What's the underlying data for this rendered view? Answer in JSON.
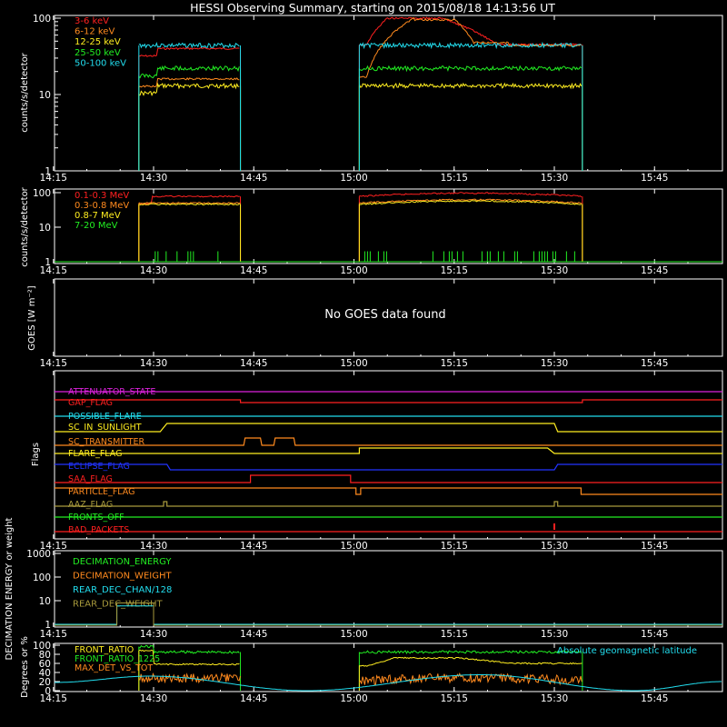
{
  "title": "HESSI Observing Summary, starting on 2015/08/18 14:13:56 UT",
  "x_ticks": [
    "14:15",
    "14:30",
    "14:45",
    "15:00",
    "15:15",
    "15:30",
    "15:45"
  ],
  "colors": {
    "red": "#ff2020",
    "orange": "#ff8a1e",
    "yellow": "#ffee20",
    "green": "#22ee22",
    "cyan": "#22ddee",
    "magenta": "#dd22dd",
    "blue": "#2233ff",
    "olive": "#a89a3c",
    "white": "#ffffff"
  },
  "chart_data": [
    {
      "id": "rate_low",
      "type": "line",
      "ylabel": "counts/s/detector",
      "yscale": "log",
      "yticks": [
        "1",
        "10",
        "100"
      ],
      "legend_placement": "top-left",
      "series": [
        {
          "name": "3-6 keV",
          "color": "red"
        },
        {
          "name": "6-12 keV",
          "color": "orange"
        },
        {
          "name": "12-25 keV",
          "color": "yellow"
        },
        {
          "name": "25-50 keV",
          "color": "green"
        },
        {
          "name": "50-100 keV",
          "color": "cyan"
        }
      ]
    },
    {
      "id": "rate_high",
      "type": "line",
      "ylabel": "counts/s/detector",
      "yscale": "log",
      "yticks": [
        "1",
        "10",
        "100"
      ],
      "legend_placement": "top-left",
      "series": [
        {
          "name": "0.1-0.3 MeV",
          "color": "red"
        },
        {
          "name": "0.3-0.8 MeV",
          "color": "orange"
        },
        {
          "name": "0.8-7 MeV",
          "color": "yellow"
        },
        {
          "name": "7-20 MeV",
          "color": "green"
        }
      ]
    },
    {
      "id": "goes",
      "type": "line",
      "ylabel": "GOES [W m⁻²]",
      "message": "No GOES data found"
    },
    {
      "id": "flags",
      "type": "line",
      "ylabel": "Flags",
      "series": [
        {
          "name": "ATTENUATOR_STATE",
          "color": "magenta"
        },
        {
          "name": "GAP_FLAG",
          "color": "red"
        },
        {
          "name": "POSSIBLE_FLARE",
          "color": "cyan"
        },
        {
          "name": "SC_IN_SUNLIGHT",
          "color": "yellow"
        },
        {
          "name": "SC_TRANSMITTER",
          "color": "orange"
        },
        {
          "name": "FLARE_FLAG",
          "color": "yellow"
        },
        {
          "name": "ECLIPSE_FLAG",
          "color": "blue"
        },
        {
          "name": "SAA_FLAG",
          "color": "red"
        },
        {
          "name": "PARTICLE_FLAG",
          "color": "orange"
        },
        {
          "name": "AAZ_FLAG",
          "color": "olive"
        },
        {
          "name": "FRONTS_OFF",
          "color": "green"
        },
        {
          "name": "BAD_PACKETS",
          "color": "red"
        }
      ]
    },
    {
      "id": "decimation",
      "type": "line",
      "ylabel": "DECIMATION ENERGY or weight",
      "yscale": "log",
      "yticks": [
        "1",
        "10",
        "100",
        "1000"
      ],
      "series": [
        {
          "name": "DECIMATION_ENERGY",
          "color": "green"
        },
        {
          "name": "DECIMATION_WEIGHT",
          "color": "orange"
        },
        {
          "name": "REAR_DEC_CHAN/128",
          "color": "cyan"
        },
        {
          "name": "REAR_DEC_WEIGHT",
          "color": "olive"
        }
      ]
    },
    {
      "id": "ratios",
      "type": "line",
      "ylabel": "Degrees or %",
      "yticks": [
        "0",
        "20",
        "40",
        "60",
        "80",
        "100"
      ],
      "series": [
        {
          "name": "FRONT_RATIO",
          "color": "yellow"
        },
        {
          "name": "FRONT_RATIO_1225",
          "color": "green"
        },
        {
          "name": "MAX_DET_VS_TOT",
          "color": "orange"
        },
        {
          "name": "Absolute geomagnetic latitude",
          "color": "cyan"
        }
      ]
    }
  ]
}
